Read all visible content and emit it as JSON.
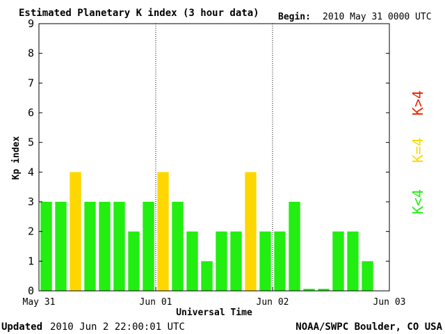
{
  "header": {
    "title": "Estimated Planetary K index (3 hour data)",
    "begin_label": "Begin:",
    "begin_value": "2010 May 31 0000 UTC"
  },
  "footer": {
    "updated_label": "Updated",
    "updated_value": "2010 Jun  2 22:00:01 UTC",
    "source": "NOAA/SWPC Boulder, CO USA"
  },
  "legend": {
    "high": "K>4",
    "equal": "K=4",
    "low": "K<4"
  },
  "colors": {
    "low": "#22ee11",
    "equal": "#ffd700",
    "high": "#ee2200",
    "axis": "#000000",
    "divider": "#000000"
  },
  "chart_data": {
    "type": "bar",
    "title": "Estimated Planetary K index (3 hour data)",
    "xlabel": "Universal Time",
    "ylabel": "Kp index",
    "ylim": [
      0,
      9
    ],
    "yticks": [
      "0",
      "1",
      "2",
      "3",
      "4",
      "5",
      "6",
      "7",
      "8",
      "9"
    ],
    "xticks": [
      "May 31",
      "Jun 01",
      "Jun 02",
      "Jun 03"
    ],
    "grid": false,
    "day_dividers": [
      "Jun 01",
      "Jun 02"
    ],
    "slots_per_day": 8,
    "days": 3,
    "values": [
      3,
      3,
      4,
      3,
      3,
      3,
      2,
      3,
      4,
      3,
      2,
      1,
      2,
      2,
      4,
      2,
      2,
      3,
      0.07,
      0.07,
      2,
      2,
      1
    ]
  }
}
